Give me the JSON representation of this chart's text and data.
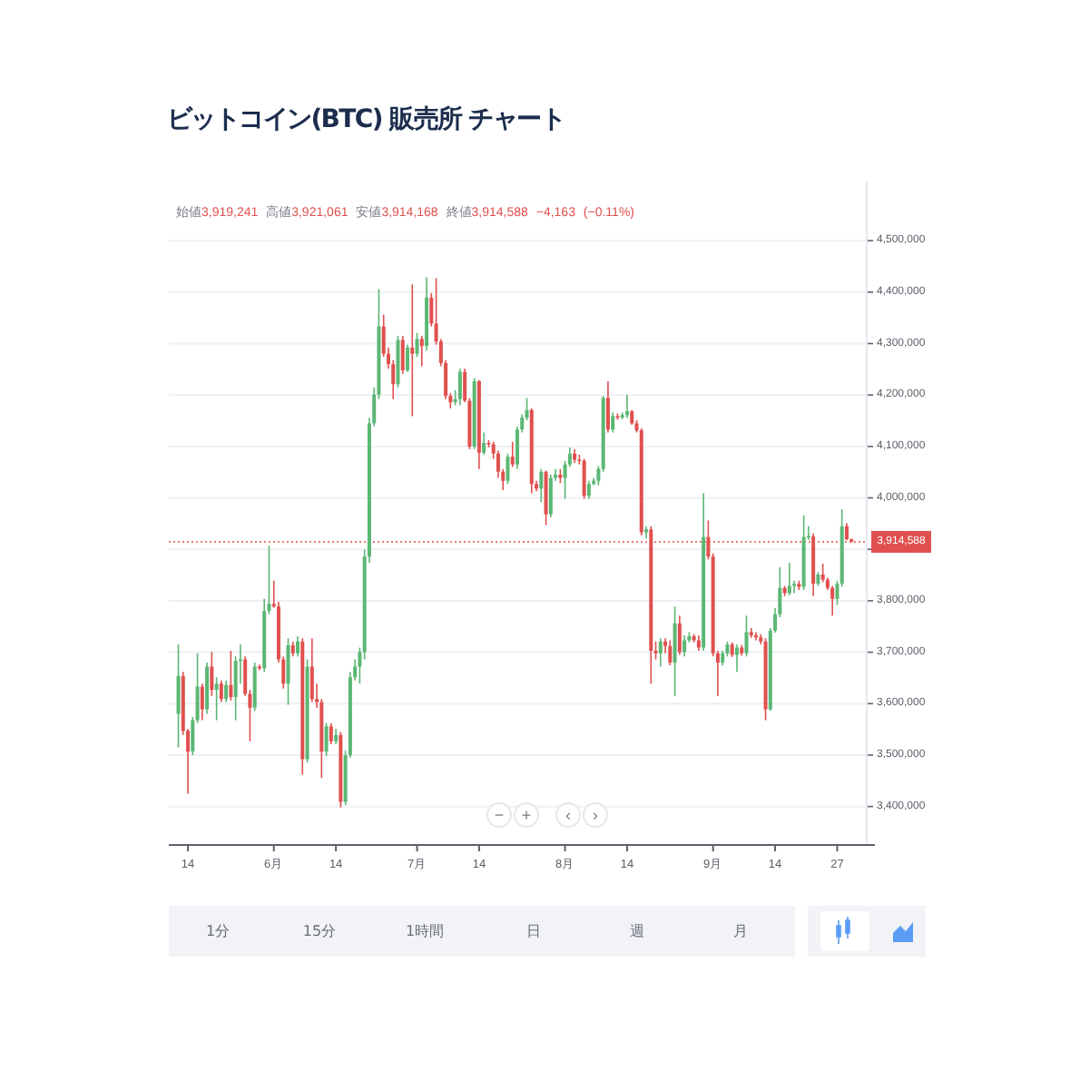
{
  "chart_data": {
    "type": "candlestick",
    "title": "ビットコイン(BTC) 販売所 チャート",
    "annotations": [
      "始値3,919,241 高値3,921,061 安値3,914,168 終値3,914,588 −4,163 (−0.11%)",
      "−",
      "+",
      "‹",
      "›",
      "1分",
      "15分",
      "1時間",
      "日",
      "週",
      "月"
    ],
    "x": [
      "--05-12",
      "--05-13",
      "--05-14",
      "--05-15",
      "--05-16",
      "--05-17",
      "--05-18",
      "--05-19",
      "--05-20",
      "--05-21",
      "--05-22",
      "--05-23",
      "--05-24",
      "--05-25",
      "--05-26",
      "--05-27",
      "--05-28",
      "--05-29",
      "--05-30",
      "--05-31",
      "--06-01",
      "--06-02",
      "--06-03",
      "--06-04",
      "--06-05",
      "--06-06",
      "--06-07",
      "--06-08",
      "--06-09",
      "--06-10",
      "--06-11",
      "--06-12",
      "--06-13",
      "--06-14",
      "--06-15",
      "--06-16",
      "--06-17",
      "--06-18",
      "--06-19",
      "--06-20",
      "--06-21",
      "--06-22",
      "--06-23",
      "--06-24",
      "--06-25",
      "--06-26",
      "--06-27",
      "--06-28",
      "--06-29",
      "--06-30",
      "--07-01",
      "--07-02",
      "--07-03",
      "--07-04",
      "--07-05",
      "--07-06",
      "--07-07",
      "--07-08",
      "--07-09",
      "--07-10",
      "--07-11",
      "--07-12",
      "--07-13",
      "--07-14",
      "--07-15",
      "--07-16",
      "--07-17",
      "--07-18",
      "--07-19",
      "--07-20",
      "--07-21",
      "--07-22",
      "--07-23",
      "--07-24",
      "--07-25",
      "--07-26",
      "--07-27",
      "--07-28",
      "--07-29",
      "--07-30",
      "--07-31",
      "--08-01",
      "--08-02",
      "--08-03",
      "--08-04",
      "--08-05",
      "--08-06",
      "--08-07",
      "--08-08",
      "--08-09",
      "--08-10",
      "--08-11",
      "--08-12",
      "--08-13",
      "--08-14",
      "--08-15",
      "--08-16",
      "--08-17",
      "--08-18",
      "--08-19",
      "--08-20",
      "--08-21",
      "--08-22",
      "--08-23",
      "--08-24",
      "--08-25",
      "--08-26",
      "--08-27",
      "--08-28",
      "--08-29",
      "--08-30",
      "--08-31",
      "--09-01",
      "--09-02",
      "--09-03",
      "--09-04",
      "--09-05",
      "--09-06",
      "--09-07",
      "--09-08",
      "--09-09",
      "--09-10",
      "--09-11",
      "--09-12",
      "--09-13",
      "--09-14",
      "--09-15",
      "--09-16",
      "--09-17",
      "--09-18",
      "--09-19",
      "--09-20",
      "--09-21",
      "--09-22",
      "--09-23",
      "--09-24",
      "--09-25",
      "--09-26",
      "--09-27",
      "--09-28",
      "--09-29",
      "--09-30"
    ],
    "ohlc": [
      [
        3580000,
        3715000,
        3515000,
        3654000
      ],
      [
        3654000,
        3662000,
        3539000,
        3547000
      ],
      [
        3547000,
        3551000,
        3425000,
        3507000
      ],
      [
        3507000,
        3574000,
        3500000,
        3568000
      ],
      [
        3568000,
        3698000,
        3562000,
        3633000
      ],
      [
        3633000,
        3639000,
        3568000,
        3589000
      ],
      [
        3589000,
        3680000,
        3580000,
        3672000
      ],
      [
        3672000,
        3700000,
        3615000,
        3627000
      ],
      [
        3627000,
        3651000,
        3568000,
        3639000
      ],
      [
        3639000,
        3645000,
        3603000,
        3609000
      ],
      [
        3609000,
        3645000,
        3603000,
        3636000
      ],
      [
        3636000,
        3703000,
        3606000,
        3613000
      ],
      [
        3613000,
        3692000,
        3568000,
        3683000
      ],
      [
        3683000,
        3715000,
        3639000,
        3686000
      ],
      [
        3686000,
        3692000,
        3615000,
        3619000
      ],
      [
        3619000,
        3627000,
        3527000,
        3592000
      ],
      [
        3592000,
        3680000,
        3586000,
        3672000
      ],
      [
        3672000,
        3676000,
        3665000,
        3669000
      ],
      [
        3669000,
        3804000,
        3662000,
        3780000
      ],
      [
        3780000,
        3907000,
        3774000,
        3794000
      ],
      [
        3794000,
        3839000,
        3786000,
        3789000
      ],
      [
        3789000,
        3798000,
        3680000,
        3686000
      ],
      [
        3686000,
        3692000,
        3629000,
        3639000
      ],
      [
        3639000,
        3727000,
        3598000,
        3714000
      ],
      [
        3714000,
        3721000,
        3692000,
        3698000
      ],
      [
        3698000,
        3731000,
        3692000,
        3721000
      ],
      [
        3721000,
        3727000,
        3462000,
        3492000
      ],
      [
        3492000,
        3686000,
        3486000,
        3672000
      ],
      [
        3672000,
        3727000,
        3603000,
        3609000
      ],
      [
        3609000,
        3639000,
        3592000,
        3603000
      ],
      [
        3603000,
        3609000,
        3456000,
        3507000
      ],
      [
        3507000,
        3562000,
        3498000,
        3556000
      ],
      [
        3556000,
        3562000,
        3521000,
        3527000
      ],
      [
        3527000,
        3551000,
        3521000,
        3539000
      ],
      [
        3539000,
        3545000,
        3398000,
        3409000
      ],
      [
        3409000,
        3509000,
        3403000,
        3500000
      ],
      [
        3500000,
        3662000,
        3495000,
        3651000
      ],
      [
        3651000,
        3686000,
        3645000,
        3672000
      ],
      [
        3672000,
        3709000,
        3639000,
        3700000
      ],
      [
        3700000,
        3900000,
        3686000,
        3886000
      ],
      [
        3886000,
        4156000,
        3874000,
        4145000
      ],
      [
        4145000,
        4215000,
        4139000,
        4201000
      ],
      [
        4201000,
        4406000,
        4192000,
        4333000
      ],
      [
        4333000,
        4356000,
        4274000,
        4280000
      ],
      [
        4280000,
        4292000,
        4251000,
        4260000
      ],
      [
        4260000,
        4268000,
        4192000,
        4221000
      ],
      [
        4221000,
        4315000,
        4215000,
        4307000
      ],
      [
        4307000,
        4315000,
        4241000,
        4248000
      ],
      [
        4248000,
        4298000,
        4245000,
        4292000
      ],
      [
        4292000,
        4415000,
        4159000,
        4280000
      ],
      [
        4280000,
        4321000,
        4274000,
        4309000
      ],
      [
        4309000,
        4315000,
        4256000,
        4295000
      ],
      [
        4295000,
        4429000,
        4286000,
        4389000
      ],
      [
        4389000,
        4398000,
        4333000,
        4339000
      ],
      [
        4339000,
        4427000,
        4298000,
        4304000
      ],
      [
        4304000,
        4309000,
        4256000,
        4262000
      ],
      [
        4262000,
        4268000,
        4192000,
        4198000
      ],
      [
        4198000,
        4204000,
        4174000,
        4186000
      ],
      [
        4186000,
        4209000,
        4180000,
        4192000
      ],
      [
        4192000,
        4251000,
        4180000,
        4245000
      ],
      [
        4245000,
        4251000,
        4186000,
        4189000
      ],
      [
        4189000,
        4194000,
        4095000,
        4100000
      ],
      [
        4100000,
        4233000,
        4095000,
        4227000
      ],
      [
        4227000,
        4229000,
        4056000,
        4088000
      ],
      [
        4088000,
        4127000,
        4084000,
        4107000
      ],
      [
        4107000,
        4112000,
        4098000,
        4104000
      ],
      [
        4104000,
        4109000,
        4076000,
        4086000
      ],
      [
        4086000,
        4092000,
        4039000,
        4051000
      ],
      [
        4051000,
        4056000,
        4015000,
        4033000
      ],
      [
        4033000,
        4086000,
        4027000,
        4080000
      ],
      [
        4080000,
        4109000,
        4060000,
        4065000
      ],
      [
        4065000,
        4139000,
        4056000,
        4133000
      ],
      [
        4133000,
        4162000,
        4127000,
        4156000
      ],
      [
        4156000,
        4194000,
        4151000,
        4171000
      ],
      [
        4171000,
        4174000,
        4009000,
        4027000
      ],
      [
        4027000,
        4033000,
        4013000,
        4018000
      ],
      [
        4018000,
        4056000,
        3992000,
        4051000
      ],
      [
        4051000,
        4053000,
        3947000,
        3968000
      ],
      [
        3968000,
        4045000,
        3962000,
        4039000
      ],
      [
        4039000,
        4056000,
        4033000,
        4045000
      ],
      [
        4045000,
        4056000,
        4029000,
        4039000
      ],
      [
        4039000,
        4072000,
        3998000,
        4065000
      ],
      [
        4065000,
        4098000,
        4060000,
        4086000
      ],
      [
        4086000,
        4095000,
        4068000,
        4074000
      ],
      [
        4074000,
        4084000,
        4065000,
        4072000
      ],
      [
        4072000,
        4076000,
        3998000,
        4004000
      ],
      [
        4004000,
        4033000,
        3998000,
        4027000
      ],
      [
        4027000,
        4039000,
        4025000,
        4033000
      ],
      [
        4033000,
        4062000,
        4025000,
        4056000
      ],
      [
        4056000,
        4198000,
        4051000,
        4194000
      ],
      [
        4194000,
        4227000,
        4127000,
        4133000
      ],
      [
        4133000,
        4166000,
        4127000,
        4159000
      ],
      [
        4159000,
        4164000,
        4152000,
        4156000
      ],
      [
        4156000,
        4166000,
        4153000,
        4161000
      ],
      [
        4161000,
        4201000,
        4156000,
        4168000
      ],
      [
        4168000,
        4171000,
        4142000,
        4145000
      ],
      [
        4145000,
        4151000,
        4127000,
        4131000
      ],
      [
        4131000,
        4135000,
        3927000,
        3933000
      ],
      [
        3933000,
        3945000,
        3921000,
        3939000
      ],
      [
        3939000,
        3945000,
        3639000,
        3703000
      ],
      [
        3703000,
        3721000,
        3686000,
        3698000
      ],
      [
        3698000,
        3727000,
        3672000,
        3721000
      ],
      [
        3721000,
        3727000,
        3698000,
        3712000
      ],
      [
        3712000,
        3723000,
        3674000,
        3680000
      ],
      [
        3680000,
        3789000,
        3615000,
        3756000
      ],
      [
        3756000,
        3771000,
        3695000,
        3700000
      ],
      [
        3700000,
        3733000,
        3692000,
        3723000
      ],
      [
        3723000,
        3739000,
        3719000,
        3731000
      ],
      [
        3731000,
        3735000,
        3719000,
        3723000
      ],
      [
        3723000,
        3733000,
        3703000,
        3709000
      ],
      [
        3709000,
        4009000,
        3703000,
        3924000
      ],
      [
        3924000,
        3956000,
        3880000,
        3886000
      ],
      [
        3886000,
        3892000,
        3692000,
        3698000
      ],
      [
        3698000,
        3703000,
        3615000,
        3680000
      ],
      [
        3680000,
        3703000,
        3674000,
        3698000
      ],
      [
        3698000,
        3721000,
        3692000,
        3715000
      ],
      [
        3715000,
        3719000,
        3691000,
        3695000
      ],
      [
        3695000,
        3715000,
        3662000,
        3709000
      ],
      [
        3709000,
        3714000,
        3693000,
        3698000
      ],
      [
        3698000,
        3771000,
        3692000,
        3739000
      ],
      [
        3739000,
        3747000,
        3728000,
        3733000
      ],
      [
        3733000,
        3739000,
        3723000,
        3729000
      ],
      [
        3729000,
        3735000,
        3715000,
        3721000
      ],
      [
        3721000,
        3727000,
        3568000,
        3589000
      ],
      [
        3589000,
        3747000,
        3586000,
        3742000
      ],
      [
        3742000,
        3786000,
        3738000,
        3774000
      ],
      [
        3774000,
        3865000,
        3768000,
        3825000
      ],
      [
        3825000,
        3829000,
        3809000,
        3815000
      ],
      [
        3815000,
        3874000,
        3811000,
        3829000
      ],
      [
        3829000,
        3839000,
        3815000,
        3833000
      ],
      [
        3833000,
        3839000,
        3821000,
        3827000
      ],
      [
        3827000,
        3966000,
        3821000,
        3924000
      ],
      [
        3924000,
        3945000,
        3918000,
        3925000
      ],
      [
        3925000,
        3931000,
        3809000,
        3833000
      ],
      [
        3833000,
        3856000,
        3829000,
        3851000
      ],
      [
        3851000,
        3872000,
        3836000,
        3841000
      ],
      [
        3841000,
        3845000,
        3821000,
        3825000
      ],
      [
        3825000,
        3829000,
        3771000,
        3804000
      ],
      [
        3804000,
        3839000,
        3792000,
        3833000
      ],
      [
        3833000,
        3978000,
        3827000,
        3945000
      ],
      [
        3945000,
        3951000,
        3918000,
        3919241
      ],
      [
        3919241,
        3921061,
        3914168,
        3914588
      ]
    ],
    "colors": [
      "#5bb774",
      "#e0504e",
      "#e0504e",
      "#5bb774",
      "#5bb774",
      "#e0504e",
      "#5bb774",
      "#e0504e",
      "#5bb774",
      "#e0504e",
      "#5bb774",
      "#e0504e",
      "#5bb774",
      "#5bb774",
      "#e0504e",
      "#e0504e",
      "#5bb774",
      "#e0504e",
      "#5bb774",
      "#5bb774",
      "#e0504e",
      "#e0504e",
      "#e0504e",
      "#5bb774",
      "#e0504e",
      "#5bb774",
      "#e0504e",
      "#5bb774",
      "#e0504e",
      "#e0504e",
      "#e0504e",
      "#5bb774",
      "#e0504e",
      "#5bb774",
      "#e0504e",
      "#5bb774",
      "#5bb774",
      "#5bb774",
      "#5bb774",
      "#5bb774",
      "#5bb774",
      "#5bb774",
      "#5bb774",
      "#e0504e",
      "#e0504e",
      "#e0504e",
      "#5bb774",
      "#e0504e",
      "#5bb774",
      "#e0504e",
      "#5bb774",
      "#e0504e",
      "#5bb774",
      "#e0504e",
      "#e0504e",
      "#e0504e",
      "#e0504e",
      "#e0504e",
      "#5bb774",
      "#5bb774",
      "#e0504e",
      "#e0504e",
      "#5bb774",
      "#e0504e",
      "#5bb774",
      "#e0504e",
      "#e0504e",
      "#e0504e",
      "#e0504e",
      "#5bb774",
      "#e0504e",
      "#5bb774",
      "#5bb774",
      "#5bb774",
      "#e0504e",
      "#e0504e",
      "#5bb774",
      "#e0504e",
      "#5bb774",
      "#5bb774",
      "#e0504e",
      "#5bb774",
      "#5bb774",
      "#e0504e",
      "#e0504e",
      "#e0504e",
      "#5bb774",
      "#5bb774",
      "#5bb774",
      "#5bb774",
      "#e0504e",
      "#5bb774",
      "#e0504e",
      "#5bb774",
      "#5bb774",
      "#e0504e",
      "#e0504e",
      "#e0504e",
      "#5bb774",
      "#e0504e",
      "#e0504e",
      "#5bb774",
      "#e0504e",
      "#e0504e",
      "#5bb774",
      "#e0504e",
      "#5bb774",
      "#5bb774",
      "#e0504e",
      "#e0504e",
      "#5bb774",
      "#e0504e",
      "#e0504e",
      "#e0504e",
      "#5bb774",
      "#5bb774",
      "#e0504e",
      "#5bb774",
      "#e0504e",
      "#5bb774",
      "#e0504e",
      "#e0504e",
      "#e0504e",
      "#e0504e",
      "#5bb774",
      "#5bb774",
      "#5bb774",
      "#e0504e",
      "#5bb774",
      "#5bb774",
      "#e0504e",
      "#5bb774",
      "#5bb774",
      "#e0504e",
      "#5bb774",
      "#e0504e",
      "#e0504e",
      "#e0504e",
      "#5bb774",
      "#5bb774",
      "#e0504e",
      "#e0504e"
    ],
    "xlim": [
      "--05-10",
      "--10-03"
    ],
    "xticks": [
      {
        "value": "--05-14",
        "label": "14"
      },
      {
        "value": "--06-01",
        "label": "6月"
      },
      {
        "value": "--06-14",
        "label": "14"
      },
      {
        "value": "--07-01",
        "label": "7月"
      },
      {
        "value": "--07-14",
        "label": "14"
      },
      {
        "value": "--08-01",
        "label": "8月"
      },
      {
        "value": "--08-14",
        "label": "14"
      },
      {
        "value": "--09-01",
        "label": "9月"
      },
      {
        "value": "--09-14",
        "label": "14"
      },
      {
        "value": "--09-27",
        "label": "27"
      }
    ],
    "ylim": [
      3327000,
      4615000
    ],
    "yticks": [
      {
        "value": 3400000,
        "label": "3,400,000"
      },
      {
        "value": 3500000,
        "label": "3,500,000"
      },
      {
        "value": 3600000,
        "label": "3,600,000"
      },
      {
        "value": 3700000,
        "label": "3,700,000"
      },
      {
        "value": 3800000,
        "label": "3,800,000"
      },
      {
        "value": 3900000,
        "label": null
      },
      {
        "value": 4000000,
        "label": "4,000,000"
      },
      {
        "value": 4100000,
        "label": "4,100,000"
      },
      {
        "value": 4200000,
        "label": "4,200,000"
      },
      {
        "value": 4300000,
        "label": "4,300,000"
      },
      {
        "value": 4400000,
        "label": "4,400,000"
      },
      {
        "value": 4500000,
        "label": "4,500,000"
      }
    ],
    "grid": "y",
    "ref_lines": [
      {
        "axis": "y",
        "value": 3914588,
        "label": "3,914,588",
        "color": "#e0504e",
        "line_style": "dotted"
      }
    ]
  }
}
